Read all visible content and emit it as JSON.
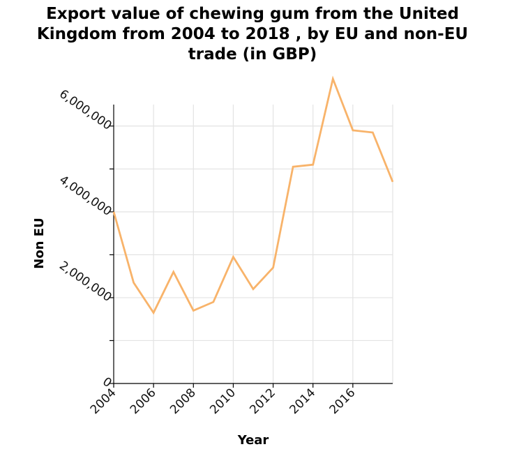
{
  "title_lines": [
    "Export value of chewing gum from the United",
    "Kingdom from 2004 to 2018 , by EU and non-EU",
    "trade (in GBP)"
  ],
  "chart_data": {
    "type": "line",
    "title": "Export value of chewing gum from the United Kingdom from 2004 to 2018 , by EU and non-EU trade (in GBP)",
    "xlabel": "Year",
    "ylabel": "Non EU",
    "x": [
      2004,
      2005,
      2006,
      2007,
      2008,
      2009,
      2010,
      2011,
      2012,
      2013,
      2014,
      2015,
      2016,
      2017,
      2018
    ],
    "series": [
      {
        "values": [
          4000000,
          2350000,
          1650000,
          2600000,
          1700000,
          1900000,
          2950000,
          2200000,
          2700000,
          5050000,
          5100000,
          7100000,
          5900000,
          5850000,
          4700000
        ]
      }
    ],
    "xlim": [
      2004,
      2018
    ],
    "ylim": [
      0,
      6500000
    ],
    "x_ticks": [
      2004,
      2006,
      2008,
      2010,
      2012,
      2014,
      2016
    ],
    "x_tick_labels": [
      "2004",
      "2006",
      "2008",
      "2010",
      "2012",
      "2014",
      "2016"
    ],
    "y_ticks": [
      0,
      1000000,
      2000000,
      3000000,
      4000000,
      5000000,
      6000000
    ],
    "y_tick_labels": [
      "0",
      "2,000,000",
      "4,000,000",
      "6,000,000"
    ],
    "y_labeled_ticks": [
      0,
      2000000,
      4000000,
      6000000
    ],
    "grid": true,
    "legend": "none",
    "colors": {
      "line": "#f8b36a",
      "grid": "#e3e3e3",
      "axis": "#000000"
    }
  }
}
